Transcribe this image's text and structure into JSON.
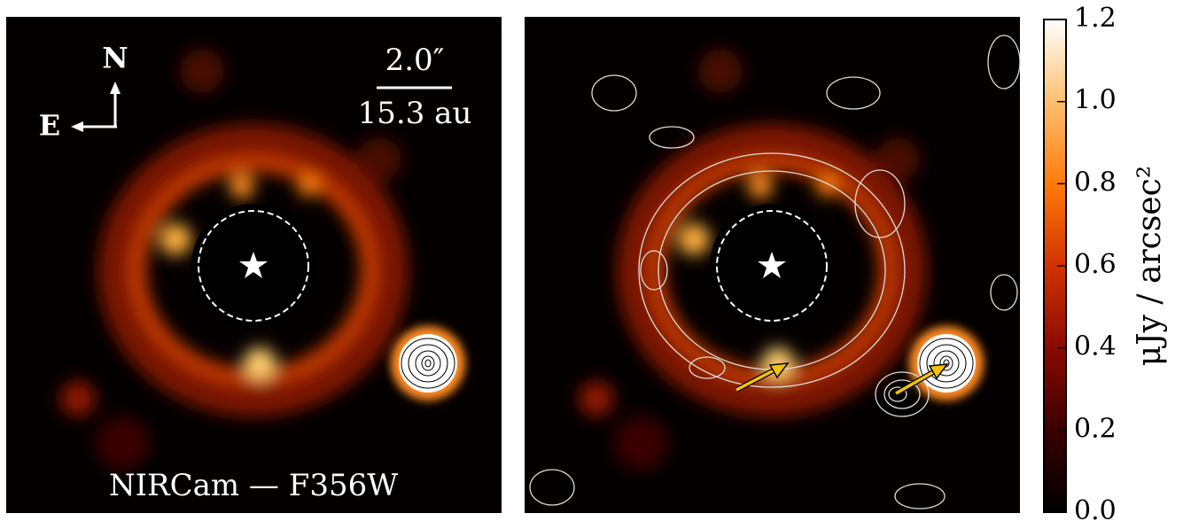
{
  "chart_data": {
    "type": "image",
    "panels": [
      {
        "annotations": [
          "N",
          "E",
          "2.0″",
          "15.3 au",
          "NIRCam — F356W"
        ]
      },
      {
        "annotations": []
      }
    ],
    "colorbar": {
      "label": "μJy / arcsec²",
      "lim": [
        0,
        1.2
      ],
      "ticks": [
        {
          "value": 0,
          "label": "0.0"
        },
        0.2,
        0.4,
        0.6,
        0.8,
        {
          "value": 1,
          "label": "1.0"
        },
        1.2
      ],
      "colormap": [
        "#000000",
        "#3a0000",
        "#8a0a00",
        "#d23300",
        "#ff7a0a",
        "#ffc070",
        "#ffffff"
      ]
    }
  }
}
